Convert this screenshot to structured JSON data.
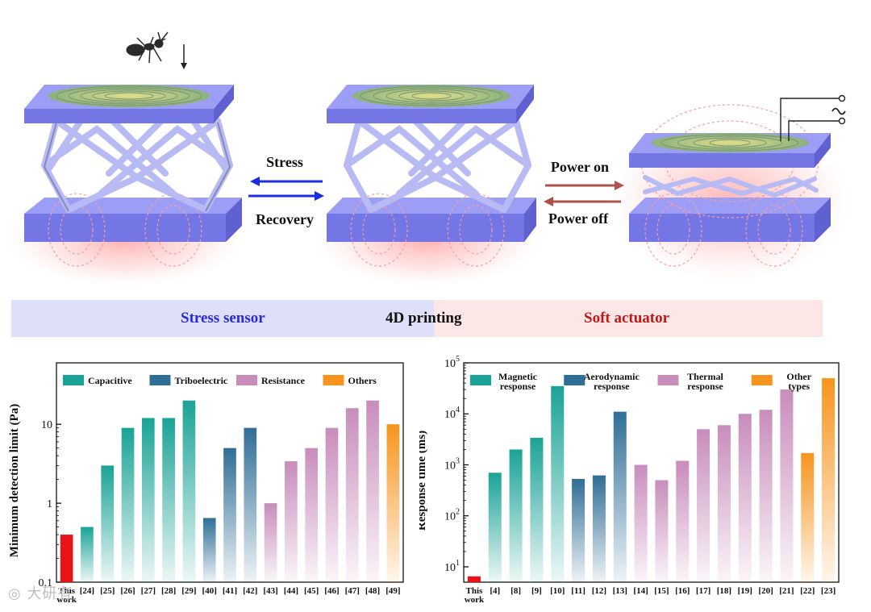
{
  "top": {
    "arrows": {
      "stress": "Stress",
      "recovery": "Recovery",
      "power_on": "Power on",
      "power_off": "Power off"
    },
    "band": {
      "stress_sensor": "Stress sensor",
      "printing": "4D printing",
      "soft_actuator": "Soft actuator"
    },
    "colors": {
      "platform": "#8a8cf0",
      "coil": "#c9c86a",
      "stress_arrow": "#1a2de0",
      "power_arrow": "#b0504a",
      "band_left": "#dedff8",
      "band_right": "#fde6e6",
      "sensor_text": "#2a2ad8",
      "actuator_text": "#c01818"
    },
    "icons": [
      "ant-icon",
      "down-arrow-icon",
      "ac-source-icon"
    ]
  },
  "chart_data": [
    {
      "type": "bar",
      "yscale": "log",
      "ylabel": "Minimum detection limit (Pa)",
      "ylim": [
        0.1,
        60
      ],
      "ytick_labels": [
        "0.1",
        "1",
        "10"
      ],
      "ytick_values": [
        0.1,
        1,
        10
      ],
      "categories": [
        "This work",
        "[24]",
        "[25]",
        "[26]",
        "[27]",
        "[28]",
        "[29]",
        "[40]",
        "[41]",
        "[42]",
        "[43]",
        "[44]",
        "[45]",
        "[46]",
        "[47]",
        "[48]",
        "[49]"
      ],
      "values": [
        0.4,
        0.5,
        3.0,
        9.0,
        12.0,
        12.0,
        20.0,
        0.65,
        5.0,
        9.0,
        1.0,
        3.4,
        5.0,
        9.0,
        16.0,
        20.0,
        10.0
      ],
      "groups": [
        "this",
        "cap",
        "cap",
        "cap",
        "cap",
        "cap",
        "cap",
        "tri",
        "tri",
        "tri",
        "res",
        "res",
        "res",
        "res",
        "res",
        "res",
        "oth"
      ],
      "legend": [
        {
          "key": "cap",
          "label": "Capacitive",
          "color": "#1aa396"
        },
        {
          "key": "tri",
          "label": "Triboelectric",
          "color": "#2f6e96"
        },
        {
          "key": "res",
          "label": "Resistance",
          "color": "#c88dbb"
        },
        {
          "key": "oth",
          "label": "Others",
          "color": "#f7941d"
        }
      ],
      "highlight_color": "#e8141a",
      "legend_position": "top"
    },
    {
      "type": "bar",
      "yscale": "log",
      "ylabel": "Response time (ms)",
      "ylim": [
        5,
        100000
      ],
      "ytick_labels": [
        {
          "base": "10",
          "exp": "1"
        },
        {
          "base": "10",
          "exp": "2"
        },
        {
          "base": "10",
          "exp": "3"
        },
        {
          "base": "10",
          "exp": "4"
        },
        {
          "base": "10",
          "exp": "5"
        }
      ],
      "ytick_values": [
        10,
        100,
        1000,
        10000,
        100000
      ],
      "categories": [
        "This work",
        "[4]",
        "[8]",
        "[9]",
        "[10]",
        "[11]",
        "[12]",
        "[13]",
        "[14]",
        "[15]",
        "[16]",
        "[17]",
        "[18]",
        "[19]",
        "[20]",
        "[21]",
        "[22]",
        "[23]"
      ],
      "values": [
        6.5,
        700,
        2000,
        3400,
        35000,
        530,
        620,
        11000,
        1000,
        500,
        1200,
        5000,
        6000,
        10000,
        12000,
        30000,
        1700,
        50000
      ],
      "groups": [
        "this",
        "mag",
        "mag",
        "mag",
        "mag",
        "aero",
        "aero",
        "aero",
        "therm",
        "therm",
        "therm",
        "therm",
        "therm",
        "therm",
        "therm",
        "therm",
        "oth",
        "oth"
      ],
      "legend": [
        {
          "key": "mag",
          "label_lines": [
            "Magnetic",
            "response"
          ],
          "color": "#1aa396"
        },
        {
          "key": "aero",
          "label_lines": [
            "Aerodynamic",
            "response"
          ],
          "color": "#2f6e96"
        },
        {
          "key": "therm",
          "label_lines": [
            "Thermal",
            "response"
          ],
          "color": "#c88dbb"
        },
        {
          "key": "oth",
          "label_lines": [
            "Other",
            "types"
          ],
          "color": "#f7941d"
        }
      ],
      "highlight_color": "#e8141a",
      "legend_position": "top"
    }
  ]
}
